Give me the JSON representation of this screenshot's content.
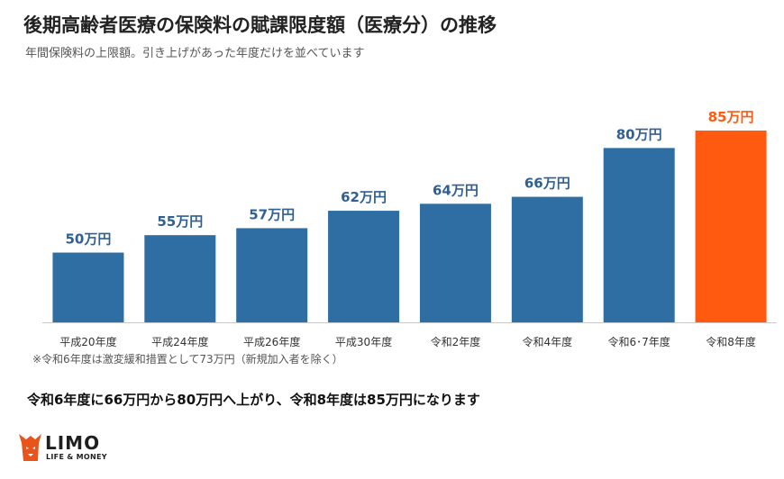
{
  "header": {
    "title": "後期高齢者医療の保険料の賦課限度額（医療分）の推移",
    "subtitle": "年間保険料の上限額。引き上げがあった年度だけを並べています"
  },
  "note": "※令和6年度は激変緩和措置として73万円（新規加入者を除く）",
  "summary": "令和6年度に66万円から80万円へ上がり、令和8年度は85万円になります",
  "logo": {
    "name": "LIMO",
    "tagline": "LIFE & MONEY"
  },
  "colors": {
    "bar": "#2f6ea3",
    "highlight": "#ff5a0f",
    "label": "#2f5f93",
    "highlight_label": "#ff5a0f"
  },
  "chart_data": {
    "type": "bar",
    "categories": [
      "平成20年度",
      "平成24年度",
      "平成26年度",
      "平成30年度",
      "令和2年度",
      "令和4年度",
      "令和6･7年度",
      "令和8年度"
    ],
    "values": [
      50,
      55,
      57,
      62,
      64,
      66,
      80,
      85
    ],
    "value_labels": [
      "50万円",
      "55万円",
      "57万円",
      "62万円",
      "64万円",
      "66万円",
      "80万円",
      "85万円"
    ],
    "highlight_index": 7,
    "ylim": [
      30,
      85
    ],
    "grid": false,
    "unit": "万円"
  }
}
